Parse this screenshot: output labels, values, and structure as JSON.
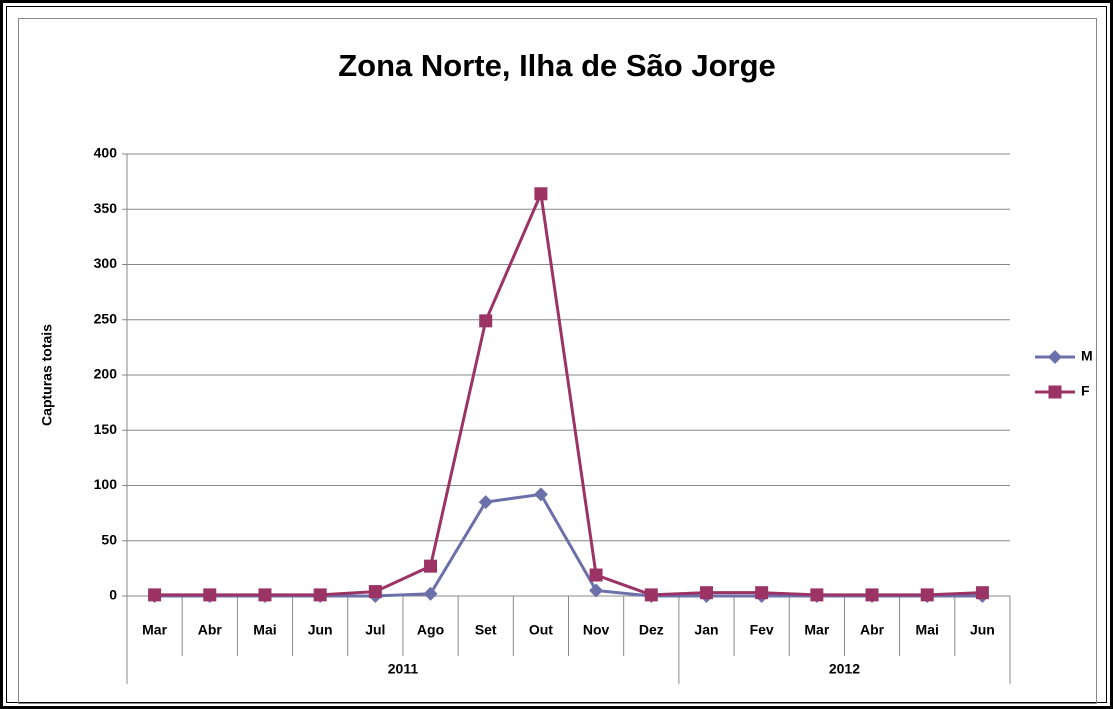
{
  "chart_data": {
    "type": "line",
    "title": "Zona Norte, Ilha de São Jorge",
    "y_label": "Capturas totais",
    "groups": [
      {
        "label": "2011",
        "categories": [
          "Mar",
          "Abr",
          "Mai",
          "Jun",
          "Jul",
          "Ago",
          "Set",
          "Out",
          "Nov",
          "Dez"
        ]
      },
      {
        "label": "2012",
        "categories": [
          "Jan",
          "Fev",
          "Mar",
          "Abr",
          "Mai",
          "Jun"
        ]
      }
    ],
    "series": [
      {
        "name": "M",
        "color": "#6c70aa",
        "marker": "diamond",
        "values": [
          0,
          0,
          0,
          0,
          0,
          2,
          85,
          92,
          5,
          0,
          0,
          0,
          0,
          0,
          0,
          0
        ]
      },
      {
        "name": "F",
        "color": "#9b3465",
        "marker": "square",
        "values": [
          1,
          1,
          1,
          1,
          4,
          27,
          249,
          364,
          19,
          1,
          3,
          3,
          1,
          1,
          1,
          3
        ]
      }
    ],
    "ylim": [
      0,
      400
    ],
    "yticks": [
      0,
      50,
      100,
      150,
      200,
      250,
      300,
      350,
      400
    ],
    "grid": true,
    "legend": "right"
  }
}
